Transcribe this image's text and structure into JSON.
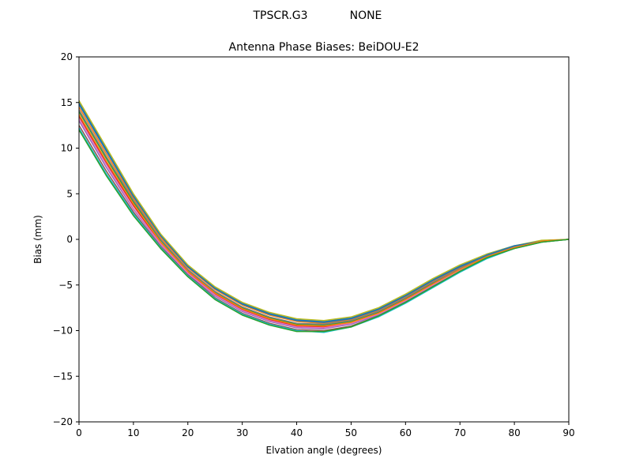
{
  "figure": {
    "suptitle_left": "TPSCR.G3",
    "suptitle_right": "NONE"
  },
  "chart_data": {
    "type": "line",
    "title": "Antenna Phase Biases: BeiDOU-E2",
    "xlabel": "Elvation angle (degrees)",
    "ylabel": "Bias (mm)",
    "xlim": [
      0,
      90
    ],
    "ylim": [
      -20,
      20
    ],
    "xticks": [
      0,
      10,
      20,
      30,
      40,
      50,
      60,
      70,
      80,
      90
    ],
    "yticks": [
      -20,
      -15,
      -10,
      -5,
      0,
      5,
      10,
      15,
      20
    ],
    "ytick_labels": [
      "−20",
      "−15",
      "−10",
      "−5",
      "0",
      "5",
      "10",
      "15",
      "20"
    ],
    "grid": false,
    "legend": "none",
    "x": [
      0,
      5,
      10,
      15,
      20,
      25,
      30,
      35,
      40,
      45,
      50,
      55,
      60,
      65,
      70,
      75,
      80,
      85,
      90
    ],
    "series": [
      {
        "color": "#1f77b4",
        "values": [
          15.0,
          9.9,
          4.9,
          0.5,
          -2.9,
          -5.3,
          -7.0,
          -8.1,
          -8.8,
          -9.0,
          -8.6,
          -7.6,
          -6.1,
          -4.4,
          -2.9,
          -1.6,
          -0.7,
          -0.2,
          0.0
        ]
      },
      {
        "color": "#ff7f0e",
        "values": [
          14.5,
          9.4,
          4.5,
          0.2,
          -3.1,
          -5.5,
          -7.2,
          -8.3,
          -9.0,
          -9.2,
          -8.8,
          -7.8,
          -6.3,
          -4.6,
          -3.1,
          -1.7,
          -0.8,
          -0.2,
          0.0
        ]
      },
      {
        "color": "#2ca02c",
        "values": [
          14.0,
          8.9,
          4.1,
          -0.1,
          -3.4,
          -5.8,
          -7.5,
          -8.6,
          -9.3,
          -9.4,
          -9.0,
          -8.0,
          -6.5,
          -4.8,
          -3.2,
          -1.8,
          -0.8,
          -0.2,
          0.0
        ]
      },
      {
        "color": "#d62728",
        "values": [
          13.5,
          8.4,
          3.7,
          -0.4,
          -3.6,
          -6.0,
          -7.7,
          -8.8,
          -9.5,
          -9.6,
          -9.2,
          -8.1,
          -6.6,
          -4.9,
          -3.3,
          -1.9,
          -0.9,
          -0.2,
          0.0
        ]
      },
      {
        "color": "#9467bd",
        "values": [
          13.0,
          7.9,
          3.3,
          -0.6,
          -3.8,
          -6.2,
          -7.9,
          -9.0,
          -9.7,
          -9.8,
          -9.3,
          -8.3,
          -6.8,
          -5.1,
          -3.4,
          -2.0,
          -0.9,
          -0.2,
          0.0
        ]
      },
      {
        "color": "#8c564b",
        "values": [
          12.5,
          7.5,
          3.0,
          -0.8,
          -3.9,
          -6.4,
          -8.1,
          -9.2,
          -9.9,
          -10.0,
          -9.5,
          -8.4,
          -6.9,
          -5.2,
          -3.5,
          -2.0,
          -1.0,
          -0.3,
          0.0
        ]
      },
      {
        "color": "#e377c2",
        "values": [
          13.2,
          8.2,
          3.4,
          -0.5,
          -3.7,
          -6.1,
          -7.8,
          -8.9,
          -9.6,
          -9.7,
          -9.2,
          -8.2,
          -6.7,
          -5.0,
          -3.4,
          -1.9,
          -0.9,
          -0.2,
          0.0
        ]
      },
      {
        "color": "#7f7f7f",
        "values": [
          14.2,
          9.1,
          4.3,
          0.0,
          -3.3,
          -5.7,
          -7.4,
          -8.5,
          -9.2,
          -9.3,
          -8.9,
          -7.9,
          -6.4,
          -4.7,
          -3.2,
          -1.8,
          -0.8,
          -0.2,
          0.0
        ]
      },
      {
        "color": "#bcbd22",
        "values": [
          15.2,
          10.1,
          5.0,
          0.6,
          -2.8,
          -5.2,
          -6.9,
          -8.0,
          -8.7,
          -8.9,
          -8.5,
          -7.5,
          -6.0,
          -4.3,
          -2.8,
          -1.6,
          -0.7,
          -0.1,
          0.0
        ]
      },
      {
        "color": "#17becf",
        "values": [
          12.2,
          7.2,
          2.8,
          -0.9,
          -4.0,
          -6.5,
          -8.2,
          -9.3,
          -10.0,
          -10.2,
          -9.6,
          -8.5,
          -7.0,
          -5.3,
          -3.6,
          -2.1,
          -1.0,
          -0.3,
          0.0
        ]
      },
      {
        "color": "#1f77b4",
        "values": [
          14.8,
          9.7,
          4.7,
          0.4,
          -3.0,
          -5.4,
          -7.1,
          -8.2,
          -8.9,
          -9.1,
          -8.7,
          -7.7,
          -6.2,
          -4.5,
          -3.0,
          -1.7,
          -0.7,
          -0.2,
          0.0
        ]
      },
      {
        "color": "#ff7f0e",
        "values": [
          13.7,
          8.6,
          3.9,
          -0.3,
          -3.5,
          -5.9,
          -7.6,
          -8.7,
          -9.4,
          -9.5,
          -9.1,
          -8.1,
          -6.6,
          -4.9,
          -3.3,
          -1.9,
          -0.9,
          -0.2,
          0.0
        ]
      },
      {
        "color": "#2ca02c",
        "values": [
          12.0,
          7.0,
          2.6,
          -1.0,
          -4.1,
          -6.6,
          -8.3,
          -9.4,
          -10.1,
          -10.1,
          -9.6,
          -8.4,
          -6.9,
          -5.2,
          -3.5,
          -2.0,
          -1.0,
          -0.3,
          0.0
        ]
      }
    ]
  }
}
